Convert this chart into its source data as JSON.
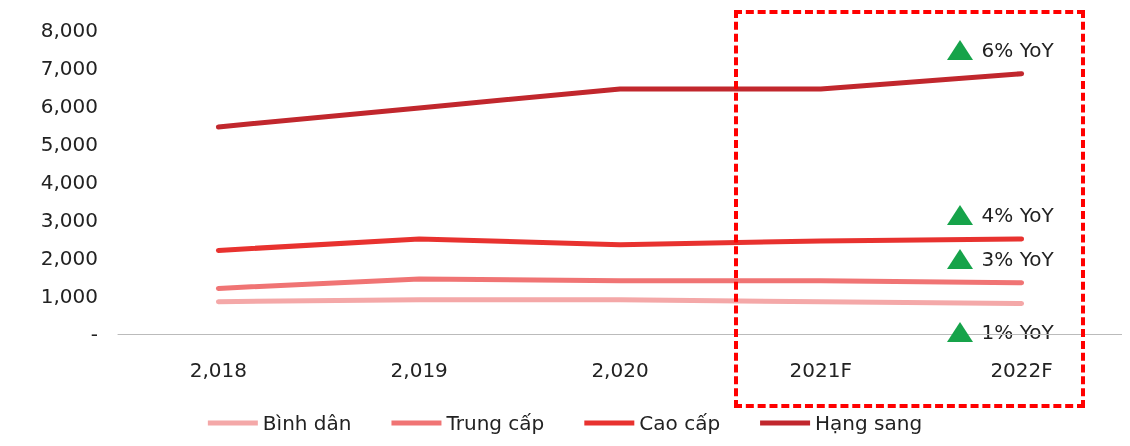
{
  "chart_data": {
    "type": "line",
    "categories": [
      "2,018",
      "2,019",
      "2,020",
      "2021F",
      "2022F"
    ],
    "series": [
      {
        "name": "Bình dân",
        "color": "#f4a8a8",
        "values": [
          850,
          900,
          900,
          850,
          800
        ]
      },
      {
        "name": "Trung cấp",
        "color": "#f07474",
        "values": [
          1200,
          1450,
          1400,
          1400,
          1350
        ]
      },
      {
        "name": "Cao cấp",
        "color": "#e8322f",
        "values": [
          2200,
          2500,
          2350,
          2450,
          2500
        ]
      },
      {
        "name": "Hạng sang",
        "color": "#c1272d",
        "values": [
          5450,
          5950,
          6450,
          6450,
          6850
        ]
      }
    ],
    "ylim": [
      0,
      8000
    ],
    "yticks": [
      {
        "value": 0,
        "label": "-"
      },
      {
        "value": 1000,
        "label": "1,000"
      },
      {
        "value": 2000,
        "label": "2,000"
      },
      {
        "value": 3000,
        "label": "3,000"
      },
      {
        "value": 4000,
        "label": "4,000"
      },
      {
        "value": 5000,
        "label": "5,000"
      },
      {
        "value": 6000,
        "label": "6,000"
      },
      {
        "value": 7000,
        "label": "7,000"
      },
      {
        "value": 8000,
        "label": "8,000"
      }
    ],
    "annotations": [
      "6% YoY",
      "4% YoY",
      "3% YoY",
      "1% YoY"
    ],
    "grid": false,
    "legend": "bottom",
    "marker": "none",
    "line_style": "solid"
  }
}
